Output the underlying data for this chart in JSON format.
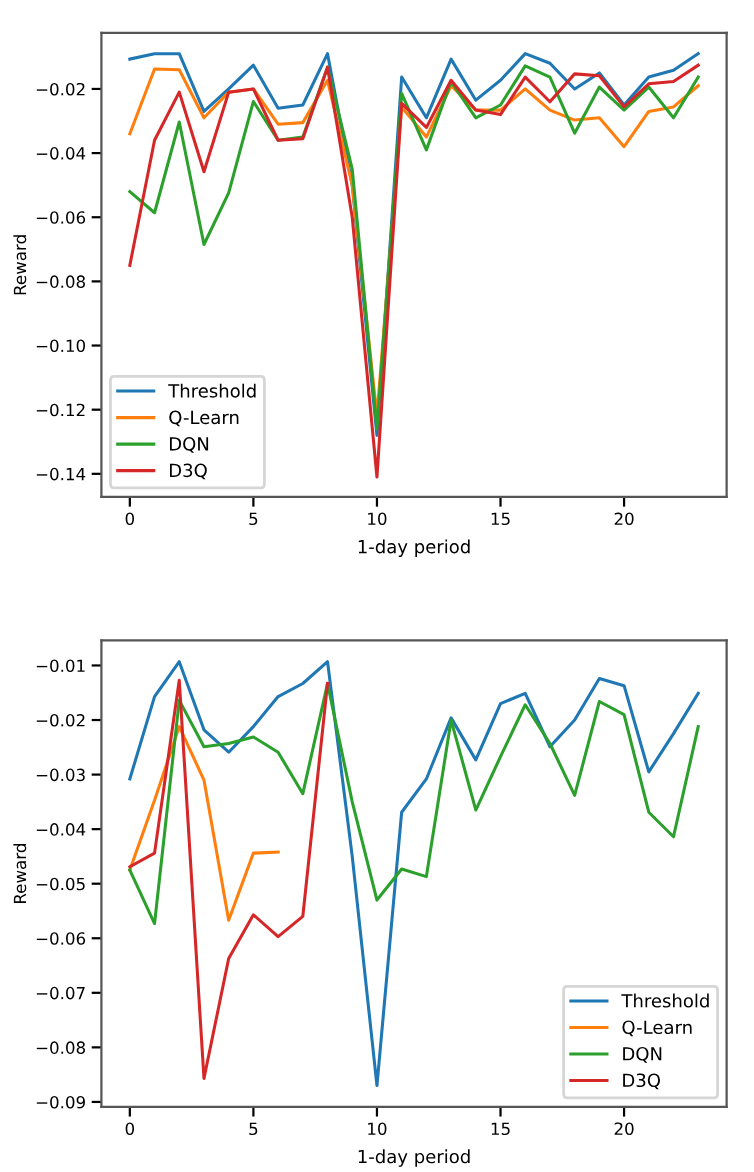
{
  "chart_data": [
    {
      "type": "line",
      "xlabel": "1-day period",
      "ylabel": "Reward",
      "x": [
        0,
        1,
        2,
        3,
        4,
        5,
        6,
        7,
        8,
        9,
        10,
        11,
        12,
        13,
        14,
        15,
        16,
        17,
        18,
        19,
        20,
        21,
        22,
        23
      ],
      "xlim": [
        -1.15,
        24.15
      ],
      "ylim": [
        -0.1472,
        -0.0025
      ],
      "xticks": [
        0,
        5,
        10,
        15,
        20
      ],
      "yticks": [
        {
          "value": -0.14,
          "label": "−0.14"
        },
        {
          "value": -0.12,
          "label": "−0.12"
        },
        {
          "value": -0.1,
          "label": "−0.10"
        },
        {
          "value": -0.08,
          "label": "−0.08"
        },
        {
          "value": -0.06,
          "label": "−0.06"
        },
        {
          "value": -0.04,
          "label": "−0.04"
        },
        {
          "value": -0.02,
          "label": "−0.02"
        }
      ],
      "grid": false,
      "legend": "bottom left",
      "series": [
        {
          "name": "Threshold",
          "color": "#1f77b4",
          "values": [
            -0.0107,
            -0.009,
            -0.009,
            -0.027,
            -0.02,
            -0.0126,
            -0.026,
            -0.025,
            -0.009,
            -0.05,
            -0.128,
            -0.0163,
            -0.029,
            -0.0107,
            -0.0235,
            -0.0173,
            -0.009,
            -0.012,
            -0.02,
            -0.015,
            -0.025,
            -0.0163,
            -0.0142,
            -0.009
          ]
        },
        {
          "name": "Q-Learn",
          "color": "#ff7f0e",
          "values": [
            -0.034,
            -0.0138,
            -0.014,
            -0.029,
            -0.021,
            -0.02,
            -0.031,
            -0.0305,
            -0.0173,
            -0.05,
            -0.122,
            -0.0256,
            -0.035,
            -0.019,
            -0.0266,
            -0.0266,
            -0.02,
            -0.0266,
            -0.0297,
            -0.029,
            -0.038,
            -0.027,
            -0.0256,
            -0.019
          ]
        },
        {
          "name": "DQN",
          "color": "#2ca02c",
          "values": [
            -0.052,
            -0.0586,
            -0.0303,
            -0.0685,
            -0.0524,
            -0.0239,
            -0.036,
            -0.035,
            -0.0132,
            -0.045,
            -0.126,
            -0.0214,
            -0.039,
            -0.0177,
            -0.029,
            -0.025,
            -0.0128,
            -0.0163,
            -0.0338,
            -0.0194,
            -0.0266,
            -0.0194,
            -0.029,
            -0.0163
          ]
        },
        {
          "name": "D3Q",
          "color": "#d62728",
          "values": [
            -0.075,
            -0.036,
            -0.021,
            -0.0458,
            -0.021,
            -0.02,
            -0.036,
            -0.0355,
            -0.0132,
            -0.06,
            -0.141,
            -0.0245,
            -0.032,
            -0.0173,
            -0.0266,
            -0.028,
            -0.0163,
            -0.024,
            -0.0153,
            -0.0159,
            -0.0256,
            -0.0184,
            -0.0177,
            -0.0126
          ]
        }
      ]
    },
    {
      "type": "line",
      "xlabel": "1-day period",
      "ylabel": "Reward",
      "x": [
        0,
        1,
        2,
        3,
        4,
        5,
        6,
        7,
        8,
        9,
        10,
        11,
        12,
        13,
        14,
        15,
        16,
        17,
        18,
        19,
        20,
        21,
        22,
        23
      ],
      "xlim": [
        -1.15,
        24.15
      ],
      "ylim": [
        -0.0909,
        -0.0054
      ],
      "xticks": [
        0,
        5,
        10,
        15,
        20
      ],
      "yticks": [
        {
          "value": -0.09,
          "label": "−0.09"
        },
        {
          "value": -0.08,
          "label": "−0.08"
        },
        {
          "value": -0.07,
          "label": "−0.07"
        },
        {
          "value": -0.06,
          "label": "−0.06"
        },
        {
          "value": -0.05,
          "label": "−0.05"
        },
        {
          "value": -0.04,
          "label": "−0.04"
        },
        {
          "value": -0.03,
          "label": "−0.03"
        },
        {
          "value": -0.02,
          "label": "−0.02"
        },
        {
          "value": -0.01,
          "label": "−0.01"
        }
      ],
      "grid": false,
      "legend": "bottom right",
      "series": [
        {
          "name": "Threshold",
          "color": "#1f77b4",
          "values": [
            -0.0308,
            -0.0157,
            -0.0093,
            -0.0218,
            -0.0259,
            -0.0212,
            -0.0157,
            -0.0133,
            -0.0093,
            -0.045,
            -0.087,
            -0.0369,
            -0.0308,
            -0.0196,
            -0.0273,
            -0.017,
            -0.0151,
            -0.0249,
            -0.02,
            -0.0124,
            -0.0137,
            -0.0295,
            -0.0225,
            -0.0151
          ]
        },
        {
          "name": "Q-Learn",
          "color": "#ff7f0e",
          "values": [
            -0.0475,
            -0.0347,
            -0.0212,
            -0.031,
            -0.0567,
            -0.0444,
            -0.0442,
            null,
            null,
            null,
            null,
            null,
            null,
            null,
            null,
            null,
            null,
            null,
            null,
            null,
            null,
            null,
            null,
            null
          ]
        },
        {
          "name": "DQN",
          "color": "#2ca02c",
          "values": [
            -0.0475,
            -0.0573,
            -0.0164,
            -0.0249,
            -0.0243,
            -0.0231,
            -0.0259,
            -0.0335,
            -0.0133,
            -0.035,
            -0.053,
            -0.0473,
            -0.0487,
            -0.02,
            -0.0365,
            -0.0267,
            -0.0172,
            -0.0243,
            -0.0338,
            -0.0166,
            -0.019,
            -0.0369,
            -0.0414,
            -0.0212
          ]
        },
        {
          "name": "D3Q",
          "color": "#d62728",
          "values": [
            -0.0469,
            -0.0444,
            -0.0127,
            -0.0857,
            -0.0637,
            -0.0557,
            -0.0597,
            -0.056,
            -0.0133,
            null,
            null,
            null,
            null,
            null,
            null,
            null,
            null,
            null,
            null,
            null,
            null,
            null,
            null,
            null
          ]
        }
      ]
    }
  ]
}
